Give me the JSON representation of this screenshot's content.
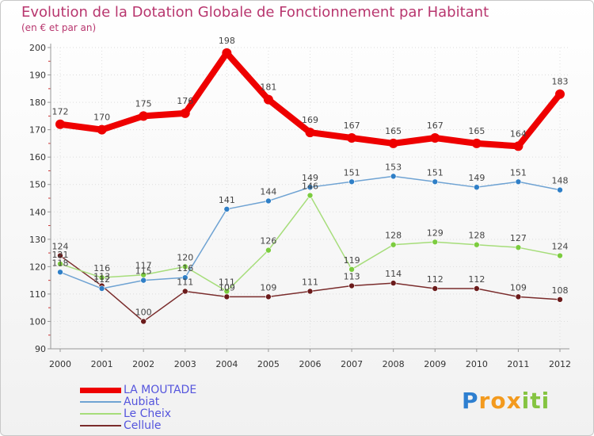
{
  "header": {
    "title": "Evolution de la Dotation Globale de Fonctionnement par Habitant",
    "subtitle": "(en € et par an)"
  },
  "logo": {
    "p": "P",
    "ro": "ro",
    "x": "x",
    "iti": "iti"
  },
  "chart_data": {
    "type": "line",
    "title": "Evolution de la Dotation Globale de Fonctionnement par Habitant",
    "subtitle": "(en € et par an)",
    "xlabel": "",
    "ylabel": "",
    "ylim": [
      90,
      200
    ],
    "yticks": [
      90,
      100,
      110,
      120,
      130,
      140,
      150,
      160,
      170,
      180,
      190,
      200
    ],
    "categories": [
      "2000",
      "2001",
      "2002",
      "2003",
      "2004",
      "2005",
      "2006",
      "2007",
      "2008",
      "2009",
      "2010",
      "2011",
      "2012"
    ],
    "grid": true,
    "legend_position": "bottom-left",
    "series": [
      {
        "name": "LA MOUTADE",
        "color": "#ee0000",
        "values": [
          172,
          170,
          175,
          176,
          198,
          181,
          169,
          167,
          165,
          167,
          165,
          164,
          183
        ],
        "labels": [
          "172",
          "170",
          "175",
          "176",
          "198",
          "181",
          "169",
          "167",
          "165",
          "167",
          "165",
          "164",
          "183"
        ]
      },
      {
        "name": "Aubiat",
        "color": "#6fa3d3",
        "marker_color": "#2f7fc7",
        "values": [
          118,
          112,
          115,
          116,
          141,
          144,
          149,
          151,
          153,
          151,
          149,
          151,
          148
        ],
        "labels": [
          "118",
          "112",
          "115",
          "116",
          "141",
          "144",
          "149",
          "151",
          "153",
          "151",
          "149",
          "151",
          "148"
        ]
      },
      {
        "name": "Le Cheix",
        "color": "#a6dd7a",
        "marker_color": "#7ccc3f",
        "values": [
          121,
          116,
          117,
          120,
          111,
          126,
          146,
          119,
          128,
          129,
          128,
          127,
          124
        ],
        "labels": [
          "121",
          "116",
          "117",
          "120",
          "111",
          "126",
          "146",
          "119",
          "128",
          "129",
          "128",
          "127",
          "124"
        ]
      },
      {
        "name": "Cellule",
        "color": "#7a2c2c",
        "marker_color": "#6b1b1b",
        "values": [
          124,
          113,
          100,
          111,
          109,
          109,
          111,
          113,
          114,
          112,
          112,
          109,
          108
        ],
        "labels": [
          "124",
          "113",
          "100",
          "111",
          "109",
          "109",
          "111",
          "113",
          "114",
          "112",
          "112",
          "109",
          "108"
        ]
      }
    ]
  }
}
